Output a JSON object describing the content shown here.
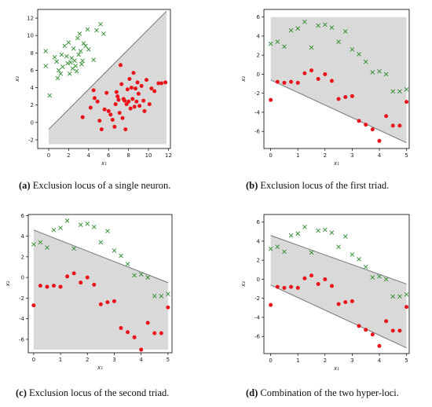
{
  "chart_data": [
    {
      "type": "scatter",
      "panel": "a",
      "caption_tag": "(a)",
      "caption_text": "Exclusion locus of a single neuron.",
      "xlabel": "x₁",
      "ylabel": "x₂",
      "xlim": [
        -1.1,
        12.2
      ],
      "ylim": [
        -3,
        13
      ],
      "xticks": [
        0,
        2,
        4,
        6,
        8,
        10,
        12
      ],
      "yticks": [
        -2,
        0,
        2,
        4,
        6,
        8,
        10,
        12
      ],
      "grid": false,
      "colors": {
        "region": "#d9d9d9",
        "line": "#808080",
        "red": "#e8141a",
        "green": "#2a8a2a"
      },
      "region": [
        [
          0,
          -0.8
        ],
        [
          11.8,
          12.8
        ],
        [
          11.8,
          -2.5
        ],
        [
          0,
          -2.5
        ]
      ],
      "lines": [
        [
          [
            0,
            -0.8
          ],
          [
            11.8,
            12.8
          ]
        ]
      ],
      "series": [
        {
          "marker": "x",
          "color": "#2a8a2a",
          "points": [
            [
              -0.3,
              8.2
            ],
            [
              -0.3,
              6.5
            ],
            [
              0.1,
              3.1
            ],
            [
              0.6,
              7.5
            ],
            [
              0.8,
              7
            ],
            [
              1,
              6
            ],
            [
              0.9,
              5.1
            ],
            [
              1.2,
              5.6
            ],
            [
              1.3,
              7.8
            ],
            [
              1.4,
              6.4
            ],
            [
              1.6,
              8.8
            ],
            [
              1.8,
              7.6
            ],
            [
              1.9,
              6.8
            ],
            [
              2,
              9.2
            ],
            [
              2.2,
              6.9
            ],
            [
              2.3,
              7.4
            ],
            [
              2.1,
              5.6
            ],
            [
              2.4,
              6.2
            ],
            [
              2.5,
              8.5
            ],
            [
              2.7,
              6.5
            ],
            [
              2.9,
              9.7
            ],
            [
              3,
              7.8
            ],
            [
              3.1,
              10.2
            ],
            [
              3.2,
              8.2
            ],
            [
              3.3,
              6.7
            ],
            [
              3.5,
              9.1
            ],
            [
              3.7,
              8.8
            ],
            [
              3.4,
              7.1
            ],
            [
              3.9,
              10.7
            ],
            [
              4,
              8.4
            ],
            [
              4.5,
              7.2
            ],
            [
              4.8,
              10.6
            ],
            [
              5.2,
              11.3
            ],
            [
              5.5,
              10.2
            ],
            [
              2.6,
              7.1
            ],
            [
              2.8,
              5.9
            ]
          ]
        },
        {
          "marker": "o",
          "color": "#e8141a",
          "points": [
            [
              3.4,
              0.6
            ],
            [
              4.2,
              1.7
            ],
            [
              4.5,
              3.7
            ],
            [
              4.6,
              2.8
            ],
            [
              4.9,
              2.4
            ],
            [
              5.1,
              0.2
            ],
            [
              5.3,
              -0.8
            ],
            [
              5.6,
              1.5
            ],
            [
              5.8,
              3.4
            ],
            [
              6,
              1.3
            ],
            [
              6.2,
              0.9
            ],
            [
              6.4,
              0.3
            ],
            [
              6.6,
              -0.5
            ],
            [
              6.7,
              2.1
            ],
            [
              6.9,
              3
            ],
            [
              7,
              2.6
            ],
            [
              7.1,
              1.1
            ],
            [
              7.3,
              4.4
            ],
            [
              7.2,
              6.6
            ],
            [
              7.4,
              0.5
            ],
            [
              7.6,
              2.5
            ],
            [
              7.7,
              -0.8
            ],
            [
              7.8,
              2.1
            ],
            [
              7.9,
              3.8
            ],
            [
              8,
              2.4
            ],
            [
              8.1,
              5
            ],
            [
              8.2,
              1.6
            ],
            [
              8.3,
              4
            ],
            [
              8.4,
              2.7
            ],
            [
              8.5,
              5.7
            ],
            [
              8.6,
              1.8
            ],
            [
              8.7,
              3.9
            ],
            [
              8.8,
              2.4
            ],
            [
              8.9,
              4.6
            ],
            [
              9,
              3.3
            ],
            [
              9.1,
              1.9
            ],
            [
              9.3,
              4.2
            ],
            [
              9.5,
              2.5
            ],
            [
              9.6,
              1.3
            ],
            [
              9.8,
              4.9
            ],
            [
              10.1,
              2.1
            ],
            [
              10.3,
              3.9
            ],
            [
              10.6,
              3.6
            ],
            [
              11,
              4.5
            ],
            [
              11.3,
              4.5
            ],
            [
              11.7,
              4.6
            ],
            [
              7.5,
              2.7
            ],
            [
              6.8,
              3.5
            ]
          ]
        }
      ]
    },
    {
      "type": "scatter",
      "panel": "b",
      "caption_tag": "(b)",
      "caption_text": "Exclusion locus of the first triad.",
      "xlabel": "x₁",
      "ylabel": "x₂",
      "xlim": [
        -0.25,
        5.1
      ],
      "ylim": [
        -7.8,
        6.8
      ],
      "xticks": [
        0,
        1,
        2,
        3,
        4,
        5
      ],
      "yticks": [
        -6,
        -4,
        -2,
        0,
        2,
        4,
        6
      ],
      "grid": false,
      "colors": {
        "region": "#d9d9d9",
        "line": "#808080",
        "red": "#e8141a",
        "green": "#2a8a2a"
      },
      "region": [
        [
          0,
          6
        ],
        [
          5,
          6
        ],
        [
          5,
          -7.2
        ],
        [
          0,
          -0.6
        ]
      ],
      "lines": [
        [
          [
            0,
            -0.6
          ],
          [
            5,
            -7.2
          ]
        ]
      ],
      "series": [
        {
          "marker": "x",
          "color": "#2a8a2a",
          "points": [
            [
              0,
              3.2
            ],
            [
              0.25,
              3.4
            ],
            [
              0.5,
              2.9
            ],
            [
              0.75,
              4.6
            ],
            [
              1,
              4.8
            ],
            [
              1.25,
              5.5
            ],
            [
              1.5,
              2.8
            ],
            [
              1.75,
              5.1
            ],
            [
              2,
              5.2
            ],
            [
              2.25,
              4.9
            ],
            [
              2.5,
              3.4
            ],
            [
              2.75,
              4.5
            ],
            [
              3,
              2.6
            ],
            [
              3.25,
              2.1
            ],
            [
              3.5,
              1.3
            ],
            [
              3.75,
              0.2
            ],
            [
              4,
              0.3
            ],
            [
              4.25,
              0
            ],
            [
              4.5,
              -1.8
            ],
            [
              4.75,
              -1.8
            ],
            [
              5,
              -1.6
            ]
          ]
        },
        {
          "marker": "o",
          "color": "#e8141a",
          "points": [
            [
              0,
              -2.7
            ],
            [
              0.25,
              -0.8
            ],
            [
              0.5,
              -0.9
            ],
            [
              0.75,
              -0.8
            ],
            [
              1,
              -0.9
            ],
            [
              1.25,
              0.1
            ],
            [
              1.5,
              0.4
            ],
            [
              1.75,
              -0.5
            ],
            [
              2,
              0
            ],
            [
              2.25,
              -0.7
            ],
            [
              2.5,
              -2.6
            ],
            [
              2.75,
              -2.4
            ],
            [
              3,
              -2.3
            ],
            [
              3.25,
              -4.9
            ],
            [
              3.5,
              -5.3
            ],
            [
              3.75,
              -5.8
            ],
            [
              4,
              -7
            ],
            [
              4.25,
              -4.4
            ],
            [
              4.5,
              -5.4
            ],
            [
              4.75,
              -5.4
            ],
            [
              5,
              -2.9
            ]
          ]
        }
      ]
    },
    {
      "type": "scatter",
      "panel": "c",
      "caption_tag": "(c)",
      "caption_text": "Exclusion locus of the second triad.",
      "xlabel": "x₁",
      "ylabel": "x₂",
      "xlim": [
        -0.2,
        5.15
      ],
      "ylim": [
        -7.3,
        6.1
      ],
      "xticks": [
        0,
        1,
        2,
        3,
        4,
        5
      ],
      "yticks": [
        -6,
        -4,
        -2,
        0,
        2,
        4,
        6
      ],
      "grid": false,
      "colors": {
        "region": "#d9d9d9",
        "line": "#808080",
        "red": "#e8141a",
        "green": "#2a8a2a"
      },
      "region": [
        [
          0,
          4.6
        ],
        [
          5,
          -0.5
        ],
        [
          5,
          -7
        ],
        [
          0,
          -7
        ]
      ],
      "lines": [
        [
          [
            0,
            4.6
          ],
          [
            5,
            -0.5
          ]
        ]
      ],
      "series": [
        {
          "marker": "x",
          "color": "#2a8a2a",
          "points": [
            [
              0,
              3.2
            ],
            [
              0.25,
              3.4
            ],
            [
              0.5,
              2.9
            ],
            [
              0.75,
              4.6
            ],
            [
              1,
              4.8
            ],
            [
              1.25,
              5.5
            ],
            [
              1.5,
              2.8
            ],
            [
              1.75,
              5.1
            ],
            [
              2,
              5.2
            ],
            [
              2.25,
              4.9
            ],
            [
              2.5,
              3.4
            ],
            [
              2.75,
              4.5
            ],
            [
              3,
              2.6
            ],
            [
              3.25,
              2.1
            ],
            [
              3.5,
              1.3
            ],
            [
              3.75,
              0.2
            ],
            [
              4,
              0.3
            ],
            [
              4.25,
              0
            ],
            [
              4.5,
              -1.8
            ],
            [
              4.75,
              -1.8
            ],
            [
              5,
              -1.6
            ]
          ]
        },
        {
          "marker": "o",
          "color": "#e8141a",
          "points": [
            [
              0,
              -2.7
            ],
            [
              0.25,
              -0.8
            ],
            [
              0.5,
              -0.9
            ],
            [
              0.75,
              -0.8
            ],
            [
              1,
              -0.9
            ],
            [
              1.25,
              0.1
            ],
            [
              1.5,
              0.4
            ],
            [
              1.75,
              -0.5
            ],
            [
              2,
              0
            ],
            [
              2.25,
              -0.7
            ],
            [
              2.5,
              -2.6
            ],
            [
              2.75,
              -2.4
            ],
            [
              3,
              -2.3
            ],
            [
              3.25,
              -4.9
            ],
            [
              3.5,
              -5.3
            ],
            [
              3.75,
              -5.8
            ],
            [
              4,
              -7
            ],
            [
              4.25,
              -4.4
            ],
            [
              4.5,
              -5.4
            ],
            [
              4.75,
              -5.4
            ],
            [
              5,
              -2.9
            ]
          ]
        }
      ]
    },
    {
      "type": "scatter",
      "panel": "d",
      "caption_tag": "(d)",
      "caption_text": "Combination of the two hyper-loci.",
      "xlabel": "x₁",
      "ylabel": "x₂",
      "xlim": [
        -0.25,
        5.1
      ],
      "ylim": [
        -7.8,
        6.8
      ],
      "xticks": [
        0,
        1,
        2,
        3,
        4,
        5
      ],
      "yticks": [
        -6,
        -4,
        -2,
        0,
        2,
        4,
        6
      ],
      "grid": false,
      "colors": {
        "region": "#d9d9d9",
        "line": "#808080",
        "red": "#e8141a",
        "green": "#2a8a2a"
      },
      "region": [
        [
          0,
          4.6
        ],
        [
          5,
          -0.5
        ],
        [
          5,
          -7.2
        ],
        [
          0,
          -0.6
        ]
      ],
      "lines": [
        [
          [
            0,
            4.6
          ],
          [
            5,
            -0.5
          ]
        ],
        [
          [
            0,
            -0.6
          ],
          [
            5,
            -7.2
          ]
        ]
      ],
      "series": [
        {
          "marker": "x",
          "color": "#2a8a2a",
          "points": [
            [
              0,
              3.2
            ],
            [
              0.25,
              3.4
            ],
            [
              0.5,
              2.9
            ],
            [
              0.75,
              4.6
            ],
            [
              1,
              4.8
            ],
            [
              1.25,
              5.5
            ],
            [
              1.5,
              2.8
            ],
            [
              1.75,
              5.1
            ],
            [
              2,
              5.2
            ],
            [
              2.25,
              4.9
            ],
            [
              2.5,
              3.4
            ],
            [
              2.75,
              4.5
            ],
            [
              3,
              2.6
            ],
            [
              3.25,
              2.1
            ],
            [
              3.5,
              1.3
            ],
            [
              3.75,
              0.2
            ],
            [
              4,
              0.3
            ],
            [
              4.25,
              0
            ],
            [
              4.5,
              -1.8
            ],
            [
              4.75,
              -1.8
            ],
            [
              5,
              -1.6
            ]
          ]
        },
        {
          "marker": "o",
          "color": "#e8141a",
          "points": [
            [
              0,
              -2.7
            ],
            [
              0.25,
              -0.8
            ],
            [
              0.5,
              -0.9
            ],
            [
              0.75,
              -0.8
            ],
            [
              1,
              -0.9
            ],
            [
              1.25,
              0.1
            ],
            [
              1.5,
              0.4
            ],
            [
              1.75,
              -0.5
            ],
            [
              2,
              0
            ],
            [
              2.25,
              -0.7
            ],
            [
              2.5,
              -2.6
            ],
            [
              2.75,
              -2.4
            ],
            [
              3,
              -2.3
            ],
            [
              3.25,
              -4.9
            ],
            [
              3.5,
              -5.3
            ],
            [
              3.75,
              -5.8
            ],
            [
              4,
              -7
            ],
            [
              4.25,
              -4.4
            ],
            [
              4.5,
              -5.4
            ],
            [
              4.75,
              -5.4
            ],
            [
              5,
              -2.9
            ]
          ]
        }
      ]
    }
  ]
}
